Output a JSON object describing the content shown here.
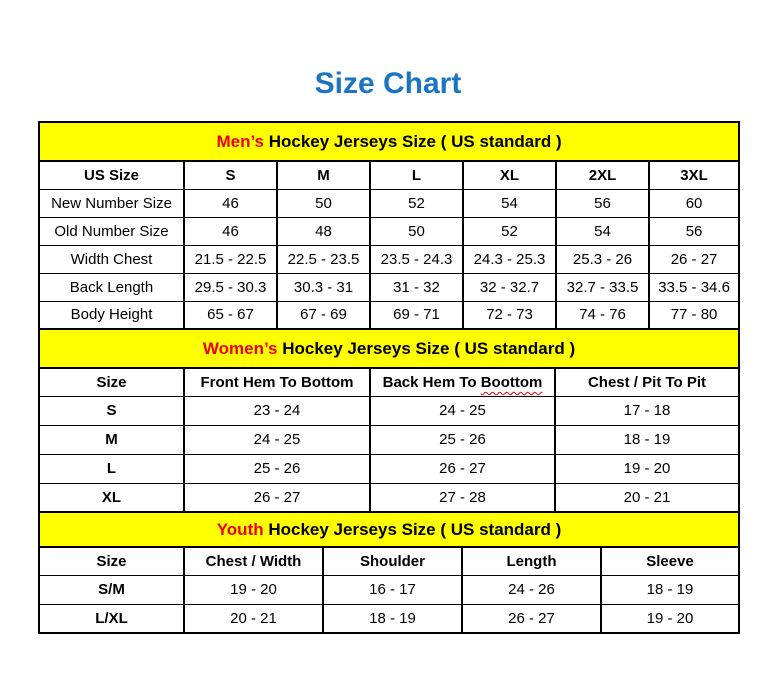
{
  "page": {
    "title": "Size Chart"
  },
  "colors": {
    "title_blue": "#1B75C0",
    "band_yellow": "#FFFF00",
    "accent_red": "#EE0000",
    "border_black": "#000000",
    "background": "#FFFFFF"
  },
  "tables": [
    {
      "id": "mens",
      "band": {
        "highlight": "Men’s",
        "rest": " Hockey Jerseys Size ( US standard )"
      },
      "columns": [
        "US Size",
        "S",
        "M",
        "L",
        "XL",
        "2XL",
        "3XL"
      ],
      "rows": [
        {
          "label": "New Number Size",
          "values": [
            "46",
            "50",
            "52",
            "54",
            "56",
            "60"
          ]
        },
        {
          "label": "Old Number Size",
          "values": [
            "46",
            "48",
            "50",
            "52",
            "54",
            "56"
          ]
        },
        {
          "label": "Width Chest",
          "values": [
            "21.5 - 22.5",
            "22.5 - 23.5",
            "23.5 - 24.3",
            "24.3 - 25.3",
            "25.3 - 26",
            "26 - 27"
          ]
        },
        {
          "label": "Back Length",
          "values": [
            "29.5 - 30.3",
            "30.3 - 31",
            "31 - 32",
            "32 - 32.7",
            "32.7 - 33.5",
            "33.5 - 34.6"
          ]
        },
        {
          "label": "Body Height",
          "values": [
            "65 - 67",
            "67 - 69",
            "69 - 71",
            "72 - 73",
            "74 - 76",
            "77 - 80"
          ]
        }
      ]
    },
    {
      "id": "womens",
      "band": {
        "highlight": "Women’s",
        "rest": " Hockey Jerseys Size ( US standard )"
      },
      "columns": [
        {
          "label": "Size"
        },
        {
          "label": "Front Hem To Bottom"
        },
        {
          "label": "Back Hem To Boottom",
          "squiggle_word": "Boottom"
        },
        {
          "label": "Chest / Pit To Pit"
        }
      ],
      "rows": [
        {
          "label": "S",
          "values": [
            "23 - 24",
            "24 - 25",
            "17 - 18"
          ]
        },
        {
          "label": "M",
          "values": [
            "24 - 25",
            "25 - 26",
            "18 - 19"
          ]
        },
        {
          "label": "L",
          "values": [
            "25 - 26",
            "26 - 27",
            "19 - 20"
          ]
        },
        {
          "label": "XL",
          "values": [
            "26 - 27",
            "27 - 28",
            "20 - 21"
          ]
        }
      ]
    },
    {
      "id": "youth",
      "band": {
        "highlight": "Youth",
        "rest": " Hockey Jerseys Size ( US standard )"
      },
      "columns": [
        "Size",
        "Chest / Width",
        "Shoulder",
        "Length",
        "Sleeve"
      ],
      "rows": [
        {
          "label": "S/M",
          "values": [
            "19 - 20",
            "16 - 17",
            "24 - 26",
            "18 - 19"
          ]
        },
        {
          "label": "L/XL",
          "values": [
            "20 - 21",
            "18 - 19",
            "26 - 27",
            "19 - 20"
          ]
        }
      ]
    }
  ]
}
